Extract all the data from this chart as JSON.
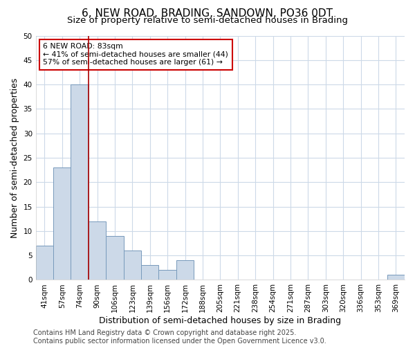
{
  "title": "6, NEW ROAD, BRADING, SANDOWN, PO36 0DT",
  "subtitle": "Size of property relative to semi-detached houses in Brading",
  "xlabel": "Distribution of semi-detached houses by size in Brading",
  "ylabel": "Number of semi-detached properties",
  "categories": [
    "41sqm",
    "57sqm",
    "74sqm",
    "90sqm",
    "106sqm",
    "123sqm",
    "139sqm",
    "156sqm",
    "172sqm",
    "188sqm",
    "205sqm",
    "221sqm",
    "238sqm",
    "254sqm",
    "271sqm",
    "287sqm",
    "303sqm",
    "320sqm",
    "336sqm",
    "353sqm",
    "369sqm"
  ],
  "values": [
    7,
    23,
    40,
    12,
    9,
    6,
    3,
    2,
    4,
    0,
    0,
    0,
    0,
    0,
    0,
    0,
    0,
    0,
    0,
    0,
    1
  ],
  "bar_color": "#ccd9e8",
  "bar_edge_color": "#7799bb",
  "ylim": [
    0,
    50
  ],
  "yticks": [
    0,
    5,
    10,
    15,
    20,
    25,
    30,
    35,
    40,
    45,
    50
  ],
  "vline_index": 2.5,
  "vline_color": "#aa0000",
  "annotation_text": "6 NEW ROAD: 83sqm\n← 41% of semi-detached houses are smaller (44)\n57% of semi-detached houses are larger (61) →",
  "annotation_box_color": "#ffffff",
  "annotation_box_edge": "#cc0000",
  "footer": "Contains HM Land Registry data © Crown copyright and database right 2025.\nContains public sector information licensed under the Open Government Licence v3.0.",
  "bg_color": "#ffffff",
  "plot_bg_color": "#ffffff",
  "grid_color": "#ccd9e8",
  "title_fontsize": 11,
  "subtitle_fontsize": 9.5,
  "axis_label_fontsize": 9,
  "tick_fontsize": 7.5,
  "footer_fontsize": 7
}
